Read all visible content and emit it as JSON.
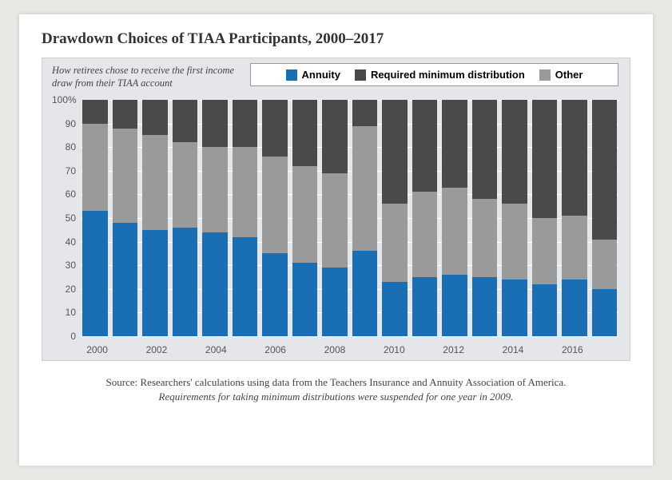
{
  "chart": {
    "type": "stacked-bar",
    "title": "Drawdown Choices of TIAA Participants, 2000–2017",
    "subtitle": "How retirees chose to receive the first income draw from their TIAA account",
    "background_color": "#e4e6ea",
    "page_background": "#e8e9e5",
    "card_background": "#ffffff",
    "title_fontsize": 19,
    "subtitle_fontsize": 12.5,
    "axis_font": "Arial",
    "axis_fontsize": 12,
    "axis_color": "#555555",
    "grid_color": "#ffffff",
    "legend": {
      "items": [
        {
          "label": "Annuity",
          "color": "#1a6fb4"
        },
        {
          "label": "Required minimum distribution",
          "color": "#4a4a4a"
        },
        {
          "label": "Other",
          "color": "#9a9a9a"
        }
      ],
      "background": "#ffffff",
      "border_color": "#999999",
      "fontsize": 13,
      "font_weight": "bold"
    },
    "ylim": [
      0,
      100
    ],
    "ytick_step": 10,
    "ytop_label": "100%",
    "years": [
      2000,
      2001,
      2002,
      2003,
      2004,
      2005,
      2006,
      2007,
      2008,
      2009,
      2010,
      2011,
      2012,
      2013,
      2014,
      2015,
      2016,
      2017
    ],
    "x_shown_labels": [
      2000,
      2002,
      2004,
      2006,
      2008,
      2010,
      2012,
      2014,
      2016
    ],
    "series_order": [
      "annuity",
      "other",
      "rmd"
    ],
    "colors": {
      "annuity": "#1a6fb4",
      "other": "#9a9a9a",
      "rmd": "#4a4a4a"
    },
    "data": {
      "annuity": [
        53,
        48,
        45,
        46,
        44,
        42,
        35,
        31,
        29,
        36,
        23,
        25,
        26,
        25,
        24,
        22,
        24,
        20
      ],
      "other": [
        37,
        40,
        40,
        36,
        36,
        38,
        41,
        41,
        40,
        53,
        33,
        36,
        37,
        33,
        32,
        28,
        27,
        21
      ],
      "rmd": [
        10,
        12,
        15,
        18,
        20,
        20,
        24,
        28,
        31,
        11,
        44,
        39,
        37,
        42,
        44,
        50,
        49,
        59
      ]
    },
    "source_line1": "Source: Researchers' calculations using data from the Teachers Insurance and Annuity Association of America.",
    "source_line2": "Requirements for taking minimum distributions were suspended for one year in 2009."
  }
}
